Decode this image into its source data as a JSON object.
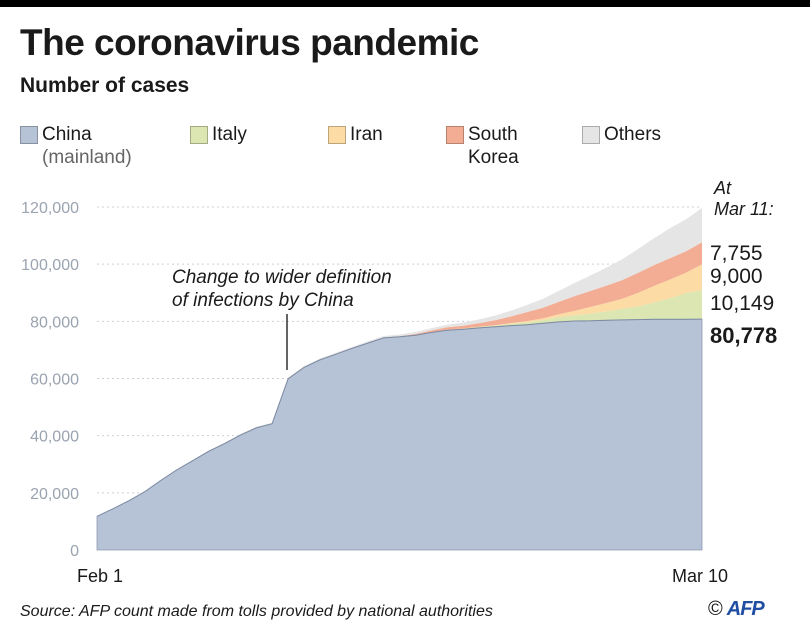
{
  "header": {
    "title": "The coronavirus pandemic",
    "subtitle": "Number of cases"
  },
  "legend": [
    {
      "label": "China",
      "sublabel": "(mainland)",
      "color": "#b6c2d5"
    },
    {
      "label": "Italy",
      "sublabel": "",
      "color": "#dbe6b2"
    },
    {
      "label": "Iran",
      "sublabel": "",
      "color": "#fcdba4"
    },
    {
      "label": "South",
      "sublabel": "Korea",
      "color": "#f3ad94"
    },
    {
      "label": "Others",
      "sublabel": "",
      "color": "#e5e5e5"
    }
  ],
  "annotation": {
    "line1": "Change to wider definition",
    "line2": "of infections by China"
  },
  "end_label": {
    "line1": "At",
    "line2": "Mar 11:"
  },
  "footer": {
    "source": "Source: AFP count made from tolls provided by national authorities",
    "copyright": "©",
    "agency": "AFP"
  },
  "chart_data": {
    "type": "area",
    "stacked": true,
    "x_start_label": "Feb 1",
    "x_end_label": "Mar 10",
    "xlim": [
      1,
      39
    ],
    "ylim": [
      0,
      120000
    ],
    "yticks": [
      0,
      20000,
      40000,
      60000,
      80000,
      100000,
      120000
    ],
    "ytick_labels": [
      "0",
      "20,000",
      "40,000",
      "60,000",
      "80,000",
      "100,000",
      "120,000"
    ],
    "x": [
      1,
      2,
      3,
      4,
      5,
      6,
      7,
      8,
      9,
      10,
      11,
      12,
      13,
      14,
      15,
      16,
      17,
      18,
      19,
      20,
      21,
      22,
      23,
      24,
      25,
      26,
      27,
      28,
      29,
      30,
      31,
      32,
      33,
      34,
      35,
      36,
      37,
      38,
      39
    ],
    "series": [
      {
        "name": "China (mainland)",
        "color": "#b6c2d5",
        "values": [
          11800,
          14400,
          17200,
          20400,
          24300,
          28000,
          31200,
          34500,
          37200,
          40200,
          42700,
          44200,
          59900,
          63900,
          66500,
          68500,
          70500,
          72400,
          74200,
          74600,
          75100,
          76100,
          76900,
          77200,
          77700,
          78100,
          78500,
          78800,
          79300,
          79800,
          80100,
          80200,
          80400,
          80500,
          80600,
          80700,
          80700,
          80700,
          80778
        ],
        "end_label": "80,778"
      },
      {
        "name": "Italy",
        "color": "#dbe6b2",
        "values": [
          0,
          0,
          0,
          0,
          0,
          0,
          0,
          0,
          0,
          0,
          0,
          0,
          0,
          0,
          0,
          0,
          0,
          0,
          0,
          0,
          3,
          62,
          155,
          229,
          322,
          400,
          650,
          888,
          1128,
          1694,
          2036,
          2502,
          3089,
          3858,
          4636,
          5883,
          7375,
          9172,
          10149
        ],
        "end_label": "10,149"
      },
      {
        "name": "Iran",
        "color": "#fcdba4",
        "values": [
          0,
          0,
          0,
          0,
          0,
          0,
          0,
          0,
          0,
          0,
          0,
          0,
          0,
          0,
          0,
          0,
          0,
          0,
          2,
          5,
          18,
          28,
          43,
          61,
          95,
          139,
          245,
          388,
          593,
          978,
          1501,
          2336,
          2922,
          3513,
          4747,
          5823,
          6566,
          7161,
          9000
        ],
        "end_label": "9,000"
      },
      {
        "name": "South Korea",
        "color": "#f3ad94",
        "values": [
          12,
          15,
          15,
          16,
          19,
          23,
          24,
          24,
          25,
          27,
          28,
          28,
          28,
          28,
          29,
          30,
          31,
          51,
          104,
          204,
          433,
          602,
          833,
          977,
          1261,
          1766,
          2337,
          3150,
          3736,
          4335,
          5186,
          5621,
          6088,
          6593,
          7041,
          7313,
          7478,
          7513,
          7755
        ],
        "end_label": "7,755"
      },
      {
        "name": "Others",
        "color": "#e5e5e5",
        "values": [
          130,
          140,
          160,
          180,
          200,
          220,
          250,
          270,
          290,
          310,
          330,
          350,
          380,
          410,
          440,
          470,
          500,
          530,
          560,
          600,
          700,
          800,
          900,
          1100,
          1300,
          1600,
          2000,
          2500,
          3100,
          3800,
          4600,
          5400,
          6300,
          7300,
          8300,
          9400,
          10500,
          11200,
          12000
        ],
        "end_label": ""
      }
    ]
  }
}
